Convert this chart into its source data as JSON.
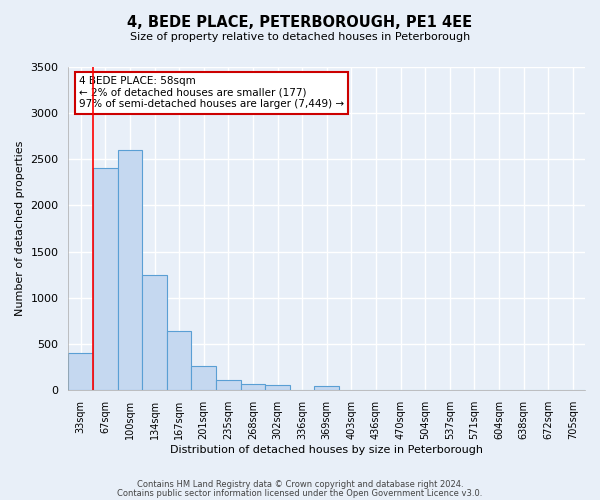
{
  "title": "4, BEDE PLACE, PETERBOROUGH, PE1 4EE",
  "subtitle": "Size of property relative to detached houses in Peterborough",
  "xlabel": "Distribution of detached houses by size in Peterborough",
  "ylabel": "Number of detached properties",
  "bar_labels": [
    "33sqm",
    "67sqm",
    "100sqm",
    "134sqm",
    "167sqm",
    "201sqm",
    "235sqm",
    "268sqm",
    "302sqm",
    "336sqm",
    "369sqm",
    "403sqm",
    "436sqm",
    "470sqm",
    "504sqm",
    "537sqm",
    "571sqm",
    "604sqm",
    "638sqm",
    "672sqm",
    "705sqm"
  ],
  "bar_values": [
    400,
    2400,
    2600,
    1250,
    640,
    260,
    110,
    65,
    55,
    0,
    50,
    0,
    0,
    0,
    0,
    0,
    0,
    0,
    0,
    0,
    0
  ],
  "bar_color": "#c5d8f0",
  "bar_edge_color": "#5a9fd4",
  "background_color": "#e8eff8",
  "grid_color": "#ffffff",
  "ylim": [
    0,
    3500
  ],
  "yticks": [
    0,
    500,
    1000,
    1500,
    2000,
    2500,
    3000,
    3500
  ],
  "red_line_x": 0.5,
  "annotation_title": "4 BEDE PLACE: 58sqm",
  "annotation_line1": "← 2% of detached houses are smaller (177)",
  "annotation_line2": "97% of semi-detached houses are larger (7,449) →",
  "annotation_box_color": "#ffffff",
  "annotation_box_edge_color": "#cc0000",
  "footer_line1": "Contains HM Land Registry data © Crown copyright and database right 2024.",
  "footer_line2": "Contains public sector information licensed under the Open Government Licence v3.0."
}
